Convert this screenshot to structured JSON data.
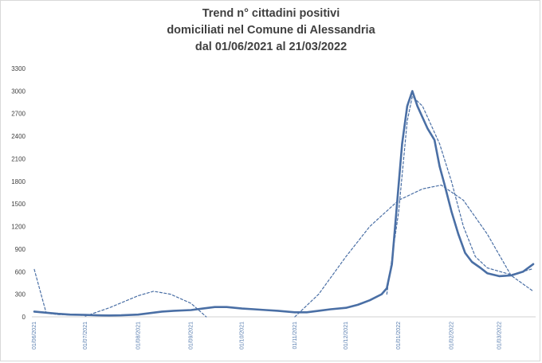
{
  "chart_data": {
    "type": "line",
    "title": [
      "Trend n° cittadini positivi",
      "domiciliati nel Comune di Alessandria",
      "dal 01/06/2021 al 21/03/2022"
    ],
    "xlabel": "",
    "ylabel": "",
    "ylim": [
      0,
      3300
    ],
    "yticks": [
      "3300",
      "3000",
      "2700",
      "2400",
      "2100",
      "1800",
      "1500",
      "1200",
      "900",
      "600",
      "300",
      "0"
    ],
    "xticks": [
      "01/06/2021",
      "01/07/2021",
      "01/08/2021",
      "01/09/2021",
      "01/10/2021",
      "01/11/2021",
      "01/12/2021",
      "01/01/2022",
      "01/02/2022",
      "01/03/2022"
    ],
    "grid": false,
    "legend": "none",
    "colors": {
      "series": "#4a6fa5",
      "trend": "#4a6fa5"
    },
    "series": [
      {
        "style": "solid",
        "x": [
          "01/06/2021",
          "08/06/2021",
          "15/06/2021",
          "22/06/2021",
          "01/07/2021",
          "08/07/2021",
          "15/07/2021",
          "22/07/2021",
          "01/08/2021",
          "08/08/2021",
          "15/08/2021",
          "22/08/2021",
          "01/09/2021",
          "08/09/2021",
          "15/09/2021",
          "22/09/2021",
          "01/10/2021",
          "08/10/2021",
          "15/10/2021",
          "22/10/2021",
          "01/11/2021",
          "08/11/2021",
          "15/11/2021",
          "22/11/2021",
          "01/12/2021",
          "08/12/2021",
          "15/12/2021",
          "22/12/2021",
          "25/12/2021",
          "28/12/2021",
          "31/12/2021",
          "03/01/2022",
          "06/01/2022",
          "09/01/2022",
          "12/01/2022",
          "15/01/2022",
          "18/01/2022",
          "22/01/2022",
          "25/01/2022",
          "28/01/2022",
          "01/02/2022",
          "05/02/2022",
          "09/02/2022",
          "13/02/2022",
          "18/02/2022",
          "22/02/2022",
          "01/03/2022",
          "08/03/2022",
          "15/03/2022",
          "21/03/2022"
        ],
        "values": [
          70,
          55,
          40,
          30,
          25,
          20,
          18,
          20,
          30,
          50,
          70,
          80,
          90,
          110,
          130,
          130,
          110,
          100,
          90,
          80,
          60,
          60,
          80,
          100,
          120,
          160,
          220,
          300,
          380,
          700,
          1500,
          2300,
          2800,
          3000,
          2800,
          2650,
          2500,
          2350,
          2000,
          1750,
          1400,
          1100,
          850,
          730,
          650,
          580,
          540,
          550,
          600,
          700
        ]
      },
      {
        "style": "dashed",
        "x": [
          "01/06/2021",
          "08/06/2021",
          "15/06/2021",
          "01/07/2021"
        ],
        "values": [
          630,
          50,
          30,
          20
        ]
      },
      {
        "style": "dashed",
        "x": [
          "01/07/2021",
          "15/07/2021",
          "01/08/2021",
          "10/08/2021",
          "20/08/2021",
          "01/09/2021",
          "10/09/2021"
        ],
        "values": [
          10,
          120,
          280,
          340,
          300,
          180,
          0
        ]
      },
      {
        "style": "dashed",
        "x": [
          "01/11/2021",
          "15/11/2021",
          "01/12/2021",
          "15/12/2021",
          "01/01/2022",
          "15/01/2022",
          "26/01/2022",
          "08/02/2022",
          "22/02/2022",
          "08/03/2022",
          "21/03/2022"
        ],
        "values": [
          0,
          300,
          800,
          1200,
          1550,
          1700,
          1750,
          1550,
          1100,
          550,
          340
        ]
      },
      {
        "style": "dashed",
        "x": [
          "25/12/2021",
          "01/01/2022",
          "06/01/2022",
          "09/01/2022",
          "15/01/2022",
          "25/01/2022",
          "01/02/2022",
          "08/02/2022",
          "15/02/2022",
          "22/02/2022",
          "08/03/2022",
          "21/03/2022"
        ],
        "values": [
          300,
          1400,
          2600,
          2930,
          2800,
          2300,
          1800,
          1200,
          800,
          650,
          560,
          640
        ]
      }
    ]
  }
}
